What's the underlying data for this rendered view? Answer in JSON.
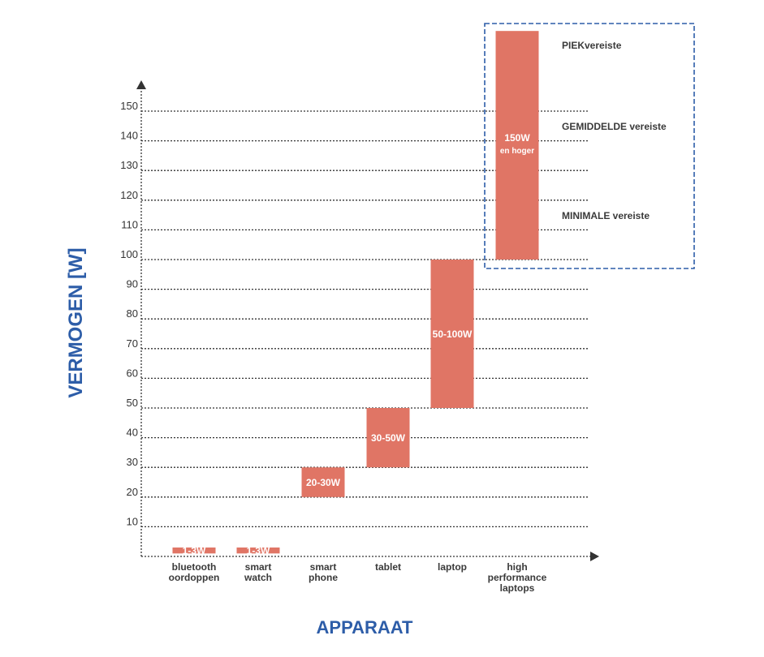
{
  "chart_data": {
    "type": "bar",
    "xlabel": "APPARAAT",
    "ylabel": "VERMOGEN [W]",
    "ylim": [
      0,
      150
    ],
    "yticks": [
      10,
      20,
      30,
      40,
      50,
      60,
      70,
      80,
      90,
      100,
      110,
      120,
      130,
      140,
      150
    ],
    "grid": true,
    "categories": [
      [
        "bluetooth",
        "oordoppen"
      ],
      [
        "smart",
        "watch"
      ],
      [
        "smart",
        "phone"
      ],
      [
        "tablet"
      ],
      [
        "laptop"
      ],
      [
        "high",
        "performance",
        "laptops"
      ]
    ],
    "bars": [
      {
        "low": 1,
        "high": 3,
        "label": "1-3W",
        "sublabel": ""
      },
      {
        "low": 1,
        "high": 3,
        "label": "1-3W",
        "sublabel": ""
      },
      {
        "low": 20,
        "high": 30,
        "label": "20-30W",
        "sublabel": ""
      },
      {
        "low": 30,
        "high": 50,
        "label": "30-50W",
        "sublabel": ""
      },
      {
        "low": 50,
        "high": 100,
        "label": "50-100W",
        "sublabel": ""
      },
      {
        "low": 100,
        "high": 177,
        "label": "150W",
        "sublabel": "en hoger"
      }
    ],
    "annotations": [
      {
        "text": "PIEKvereiste",
        "y": 172
      },
      {
        "text": "GEMIDDELDE vereiste",
        "y": 145
      },
      {
        "text": "MINIMALE vereiste",
        "y": 115
      }
    ],
    "colors": {
      "bar": "#e07565",
      "axis_label": "#2d5da8",
      "highlight_box": "#2d5da8",
      "grid": "#333333"
    }
  }
}
